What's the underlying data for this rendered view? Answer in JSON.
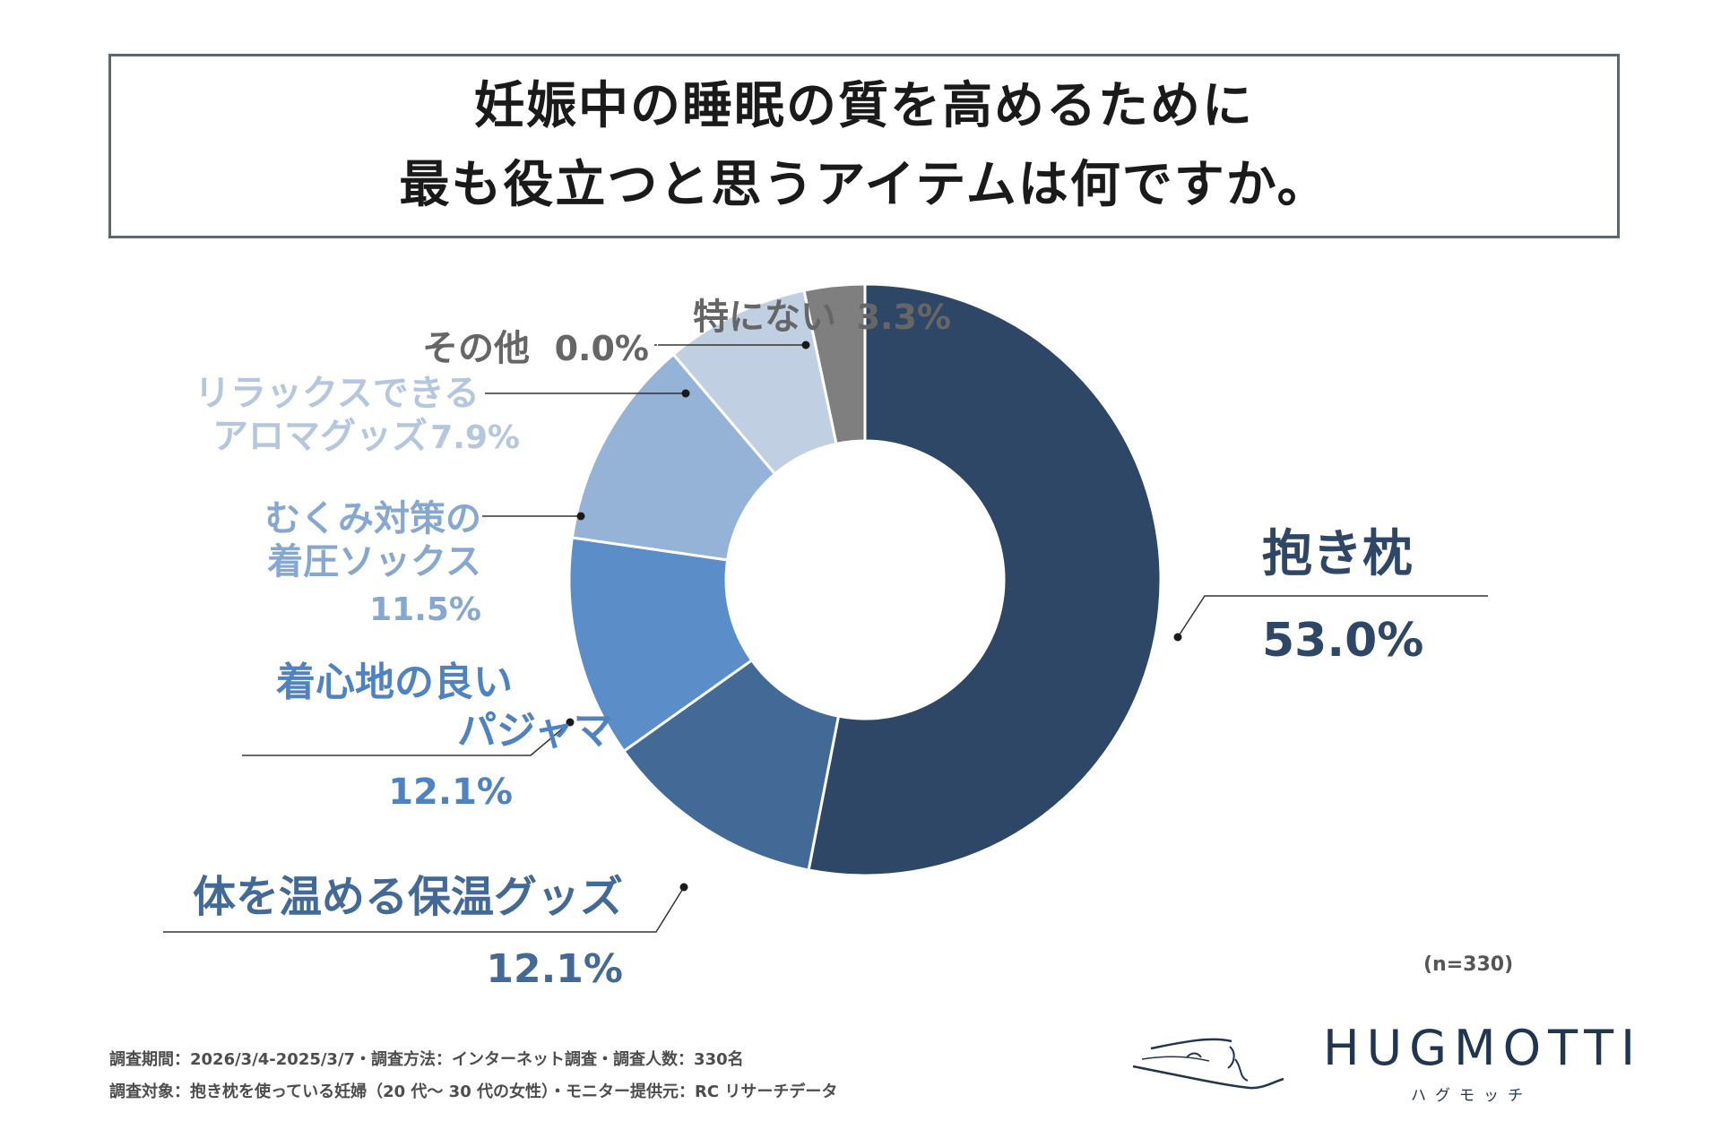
{
  "title": {
    "line1": "妊娠中の睡眠の質を高めるために",
    "line2": "最も役立つと思うアイテムは何ですか。"
  },
  "chart_data": {
    "type": "pie",
    "donut": true,
    "sample_note": "(n=330)",
    "slices": [
      {
        "label_lines": [
          "抱き枕"
        ],
        "value": 53.0,
        "value_text": "53.0%",
        "color": "#2f4766"
      },
      {
        "label_lines": [
          "体を温める保温グッズ"
        ],
        "value": 12.1,
        "value_text": "12.1%",
        "color": "#436a96"
      },
      {
        "label_lines": [
          "着心地の良い",
          "パジャマ"
        ],
        "value": 12.1,
        "value_text": "12.1%",
        "color": "#5b8dc8"
      },
      {
        "label_lines": [
          "むくみ対策の",
          "着圧ソックス"
        ],
        "value": 11.5,
        "value_text": "11.5%",
        "color": "#94b3d7"
      },
      {
        "label_lines": [
          "リラックスできる",
          "アロマグッズ"
        ],
        "value": 7.9,
        "value_text": "7.9%",
        "color": "#c0d0e2"
      },
      {
        "label_lines": [
          "その他"
        ],
        "value": 0.0,
        "value_text": "0.0%",
        "color": "#9a9a9a"
      },
      {
        "label_lines": [
          "特にない"
        ],
        "value": 3.3,
        "value_text": "3.3%",
        "color": "#7f7f7f"
      }
    ]
  },
  "footer": {
    "line1": "調査期間：2026/3/4-2025/3/7・調査方法：インターネット調査・調査人数：330名",
    "line2": "調査対象：抱き枕を使っている妊婦（20 代〜 30 代の女性）・モニター提供元：RC リサーチデータ"
  },
  "logo": {
    "name": "HUGMOTTI",
    "kana": "ハグモッチ"
  }
}
